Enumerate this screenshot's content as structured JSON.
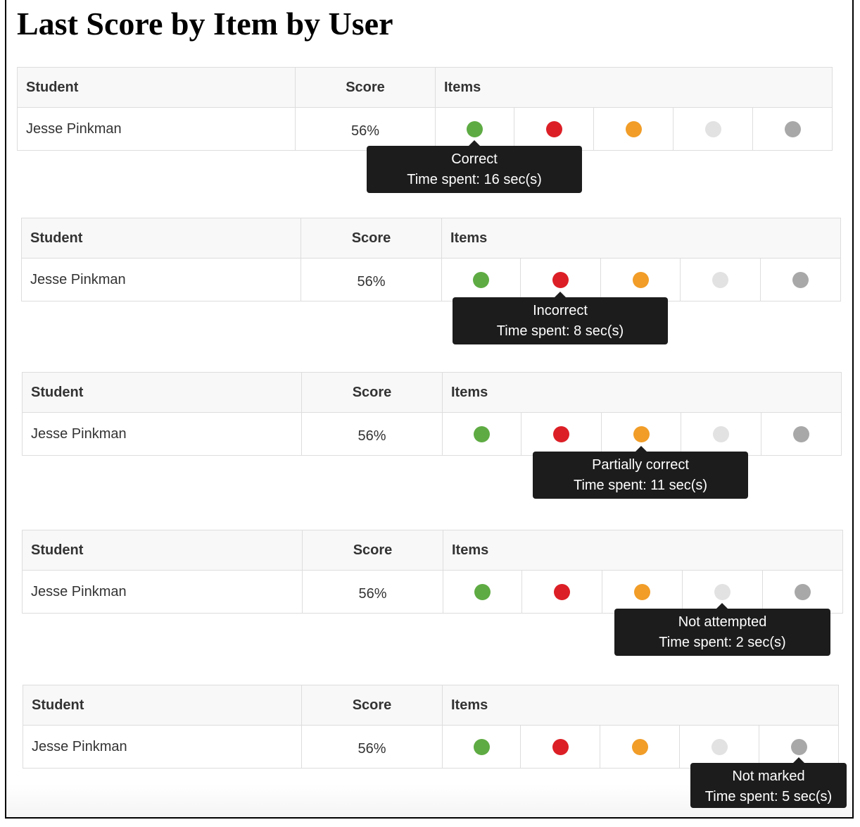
{
  "page": {
    "title": "Last Score by Item by User"
  },
  "headers": {
    "student": "Student",
    "score": "Score",
    "items": "Items"
  },
  "legend_colors": {
    "correct": "#5eab43",
    "incorrect": "#dc1f26",
    "partially_correct": "#f19d28",
    "not_attempted": "#e2e2e2",
    "not_marked": "#a8a8a8"
  },
  "tables": [
    {
      "student": "Jesse Pinkman",
      "score": "56%",
      "items": [
        "correct",
        "incorrect",
        "partially_correct",
        "not_attempted",
        "not_marked"
      ],
      "tooltip": {
        "item_index": 0,
        "status": "Correct",
        "time": "Time spent: 16 sec(s)"
      }
    },
    {
      "student": "Jesse Pinkman",
      "score": "56%",
      "items": [
        "correct",
        "incorrect",
        "partially_correct",
        "not_attempted",
        "not_marked"
      ],
      "tooltip": {
        "item_index": 1,
        "status": "Incorrect",
        "time": "Time spent: 8 sec(s)"
      }
    },
    {
      "student": "Jesse Pinkman",
      "score": "56%",
      "items": [
        "correct",
        "incorrect",
        "partially_correct",
        "not_attempted",
        "not_marked"
      ],
      "tooltip": {
        "item_index": 2,
        "status": "Partially correct",
        "time": "Time spent: 11 sec(s)"
      }
    },
    {
      "student": "Jesse Pinkman",
      "score": "56%",
      "items": [
        "correct",
        "incorrect",
        "partially_correct",
        "not_attempted",
        "not_marked"
      ],
      "tooltip": {
        "item_index": 3,
        "status": "Not attempted",
        "time": "Time spent: 2 sec(s)"
      }
    },
    {
      "student": "Jesse Pinkman",
      "score": "56%",
      "items": [
        "correct",
        "incorrect",
        "partially_correct",
        "not_attempted",
        "not_marked"
      ],
      "tooltip": {
        "item_index": 4,
        "status": "Not marked",
        "time": "Time spent: 5 sec(s)"
      }
    }
  ]
}
